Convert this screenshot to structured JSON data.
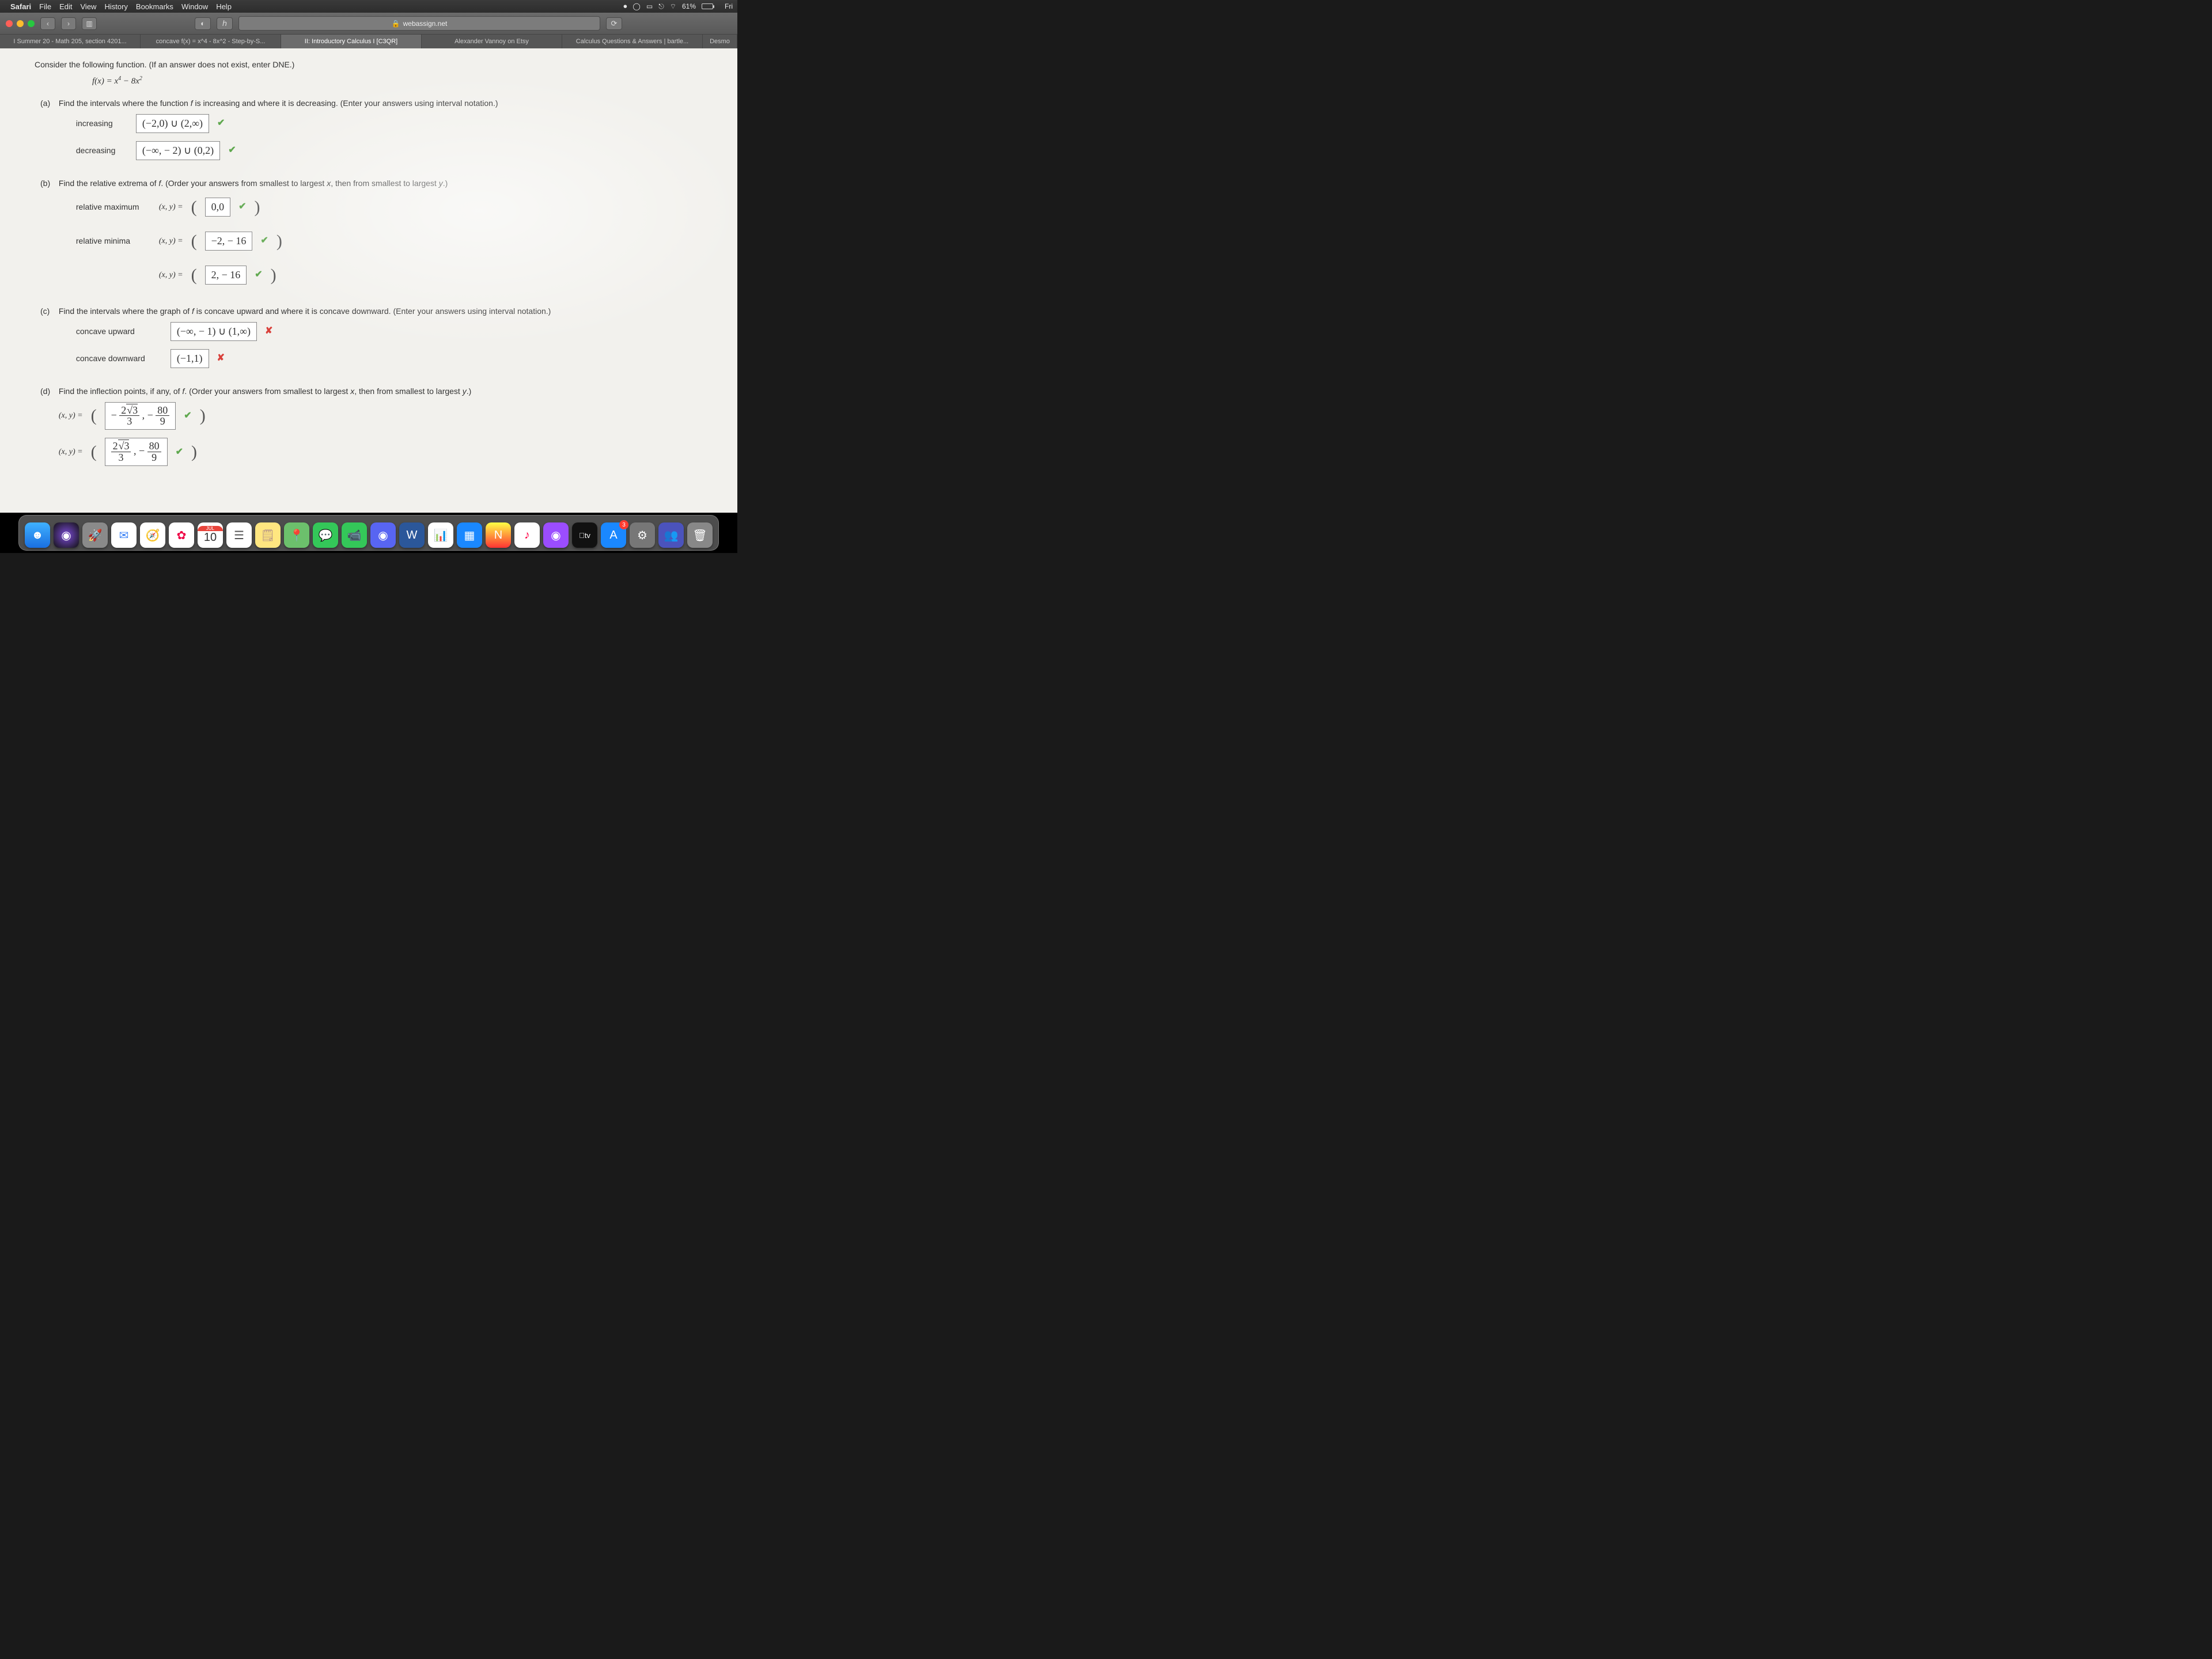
{
  "menubar": {
    "app": "Safari",
    "items": [
      "File",
      "Edit",
      "View",
      "History",
      "Bookmarks",
      "Window",
      "Help"
    ],
    "battery_pct": "61%",
    "day": "Fri"
  },
  "safari": {
    "url": "webassign.net",
    "tabs": [
      "I Summer 20 - Math 205, section 4201...",
      "concave f(x) = x^4 - 8x^2 - Step-by-S...",
      "II: Introductory Calculus I [C3QR]",
      "Alexander Vannoy on Etsy",
      "Calculus Questions & Answers | bartle...",
      "Desmo"
    ],
    "active_tab_index": 2
  },
  "problem": {
    "prompt": "Consider the following function. (If an answer does not exist, enter DNE.)",
    "function": "f(x) = x⁴ − 8x²"
  },
  "parts": {
    "a": {
      "label": "(a)",
      "text": "Find the intervals where the function f is increasing and where it is decreasing. (Enter your answers using interval notation.)",
      "rows": [
        {
          "label": "increasing",
          "answer": "(−2,0) ∪ (2,∞)",
          "mark": "check"
        },
        {
          "label": "decreasing",
          "answer": "(−∞, − 2) ∪ (0,2)",
          "mark": "check"
        }
      ]
    },
    "b": {
      "label": "(b)",
      "text": "Find the relative extrema of f. (Order your answers from smallest to largest x, then from smallest to largest y.)",
      "rows": [
        {
          "label": "relative maximum",
          "prefix": "(x, y)  =",
          "answer": "0,0",
          "mark": "check"
        },
        {
          "label": "relative minima",
          "prefix": "(x, y)  =",
          "answer": "−2, − 16",
          "mark": "check"
        },
        {
          "label": "",
          "prefix": "(x, y)  =",
          "answer": "2, − 16",
          "mark": "check"
        }
      ]
    },
    "c": {
      "label": "(c)",
      "text": "Find the intervals where the graph of f is concave upward and where it is concave downward. (Enter your answers using interval notation.)",
      "rows": [
        {
          "label": "concave upward",
          "answer": "(−∞, − 1) ∪ (1,∞)",
          "mark": "cross"
        },
        {
          "label": "concave downward",
          "answer": "(−1,1)",
          "mark": "cross"
        }
      ]
    },
    "d": {
      "label": "(d)",
      "text": "Find the inflection points, if any, of f. (Order your answers from smallest to largest x, then from smallest to largest y.)",
      "rows": [
        {
          "prefix": "(x, y)  =",
          "neg_first": true,
          "num1": "2√3",
          "den1": "3",
          "num2": "80",
          "den2": "9",
          "mark": "check"
        },
        {
          "prefix": "(x, y)  =",
          "neg_first": false,
          "num1": "2√3",
          "den1": "3",
          "num2": "80",
          "den2": "9",
          "mark": "check"
        }
      ]
    }
  },
  "dock": {
    "calendar": {
      "month": "JUL",
      "day": "10"
    },
    "badge_3": "3",
    "tv_label": "tv",
    "icons": [
      {
        "name": "finder",
        "bg": "linear-gradient(#3fb1ff,#1a6fe0)",
        "glyph": "☻"
      },
      {
        "name": "siri",
        "bg": "radial-gradient(circle,#7b4bd6,#111)",
        "glyph": "◉"
      },
      {
        "name": "launchpad",
        "bg": "#8a8a8a",
        "glyph": "🚀"
      },
      {
        "name": "mail",
        "bg": "#fff",
        "glyph": "✉",
        "fg": "#3b82f6"
      },
      {
        "name": "safari",
        "bg": "#fff",
        "glyph": "🧭",
        "fg": "#1a6fe0"
      },
      {
        "name": "photos",
        "bg": "#fff",
        "glyph": "✿",
        "fg": "#e04"
      },
      {
        "name": "calendar",
        "type": "calendar"
      },
      {
        "name": "reminders",
        "bg": "#fff",
        "glyph": "☰",
        "fg": "#555"
      },
      {
        "name": "notes",
        "bg": "#ffe680",
        "glyph": "🗒",
        "fg": "#a88"
      },
      {
        "name": "maps",
        "bg": "#6cc06c",
        "glyph": "📍"
      },
      {
        "name": "messages",
        "bg": "#34c759",
        "glyph": "💬"
      },
      {
        "name": "facetime",
        "bg": "#34c759",
        "glyph": "📹"
      },
      {
        "name": "discord",
        "bg": "#5865f2",
        "glyph": "◉"
      },
      {
        "name": "word",
        "bg": "#2b579a",
        "glyph": "W"
      },
      {
        "name": "numbers",
        "bg": "#fff",
        "glyph": "📊"
      },
      {
        "name": "keynote",
        "bg": "#1a88ff",
        "glyph": "▦"
      },
      {
        "name": "news",
        "bg": "linear-gradient(#ff4,#f33)",
        "glyph": "N"
      },
      {
        "name": "itunes",
        "bg": "#fff",
        "glyph": "♪",
        "fg": "#f04"
      },
      {
        "name": "podcasts",
        "bg": "#9b4dff",
        "glyph": "◉"
      },
      {
        "name": "appletv",
        "type": "tv"
      },
      {
        "name": "appstore",
        "bg": "#1a88ff",
        "glyph": "A",
        "badge": "3"
      },
      {
        "name": "sysprefs",
        "bg": "#777",
        "glyph": "⚙"
      },
      {
        "name": "teams",
        "bg": "#4b53bc",
        "glyph": "👥"
      },
      {
        "name": "trash",
        "bg": "#888",
        "glyph": "🗑"
      }
    ]
  },
  "colors": {
    "correct": "#5fa84e",
    "incorrect": "#d9403a",
    "page_bg": "#f2f1ed",
    "box_border": "#888"
  }
}
